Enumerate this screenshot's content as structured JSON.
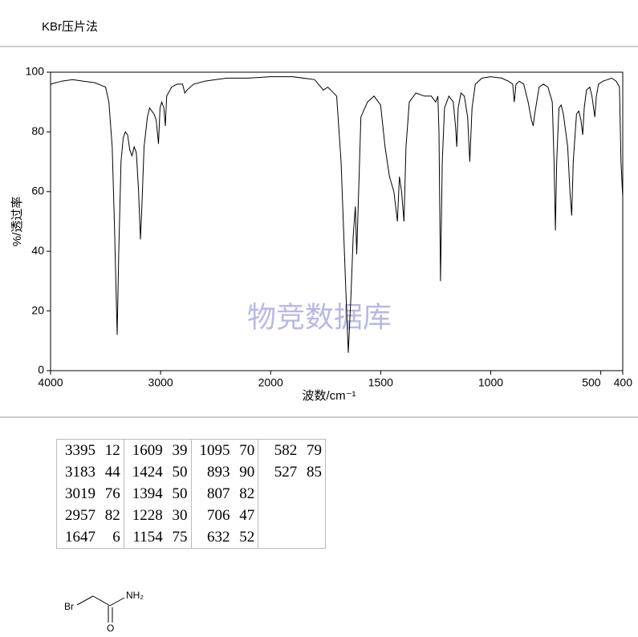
{
  "header": {
    "title": "KBr压片法"
  },
  "chart_data": {
    "type": "line",
    "xlabel": "波数/cm⁻¹",
    "ylabel": "%/透过率",
    "watermark": "物竞数据库",
    "xlim": [
      4000,
      400
    ],
    "x_scale_break": 2000,
    "xticks": [
      4000,
      3000,
      2000,
      1500,
      1000,
      500,
      400
    ],
    "ylim": [
      0,
      100
    ],
    "yticks": [
      0,
      20,
      40,
      60,
      80,
      100
    ],
    "x": [
      4000,
      3900,
      3800,
      3700,
      3600,
      3500,
      3470,
      3440,
      3420,
      3395,
      3380,
      3360,
      3340,
      3320,
      3300,
      3280,
      3260,
      3240,
      3220,
      3200,
      3183,
      3170,
      3150,
      3120,
      3100,
      3060,
      3040,
      3019,
      3005,
      2990,
      2970,
      2957,
      2945,
      2900,
      2850,
      2800,
      2780,
      2760,
      2700,
      2600,
      2500,
      2400,
      2200,
      2000,
      1900,
      1800,
      1760,
      1740,
      1700,
      1680,
      1660,
      1647,
      1635,
      1625,
      1615,
      1609,
      1600,
      1590,
      1560,
      1530,
      1500,
      1480,
      1460,
      1440,
      1424,
      1415,
      1405,
      1394,
      1385,
      1370,
      1340,
      1300,
      1270,
      1250,
      1240,
      1235,
      1228,
      1220,
      1210,
      1190,
      1170,
      1160,
      1154,
      1148,
      1135,
      1120,
      1105,
      1095,
      1085,
      1070,
      1040,
      1000,
      950,
      920,
      900,
      893,
      885,
      870,
      850,
      830,
      815,
      807,
      800,
      780,
      760,
      740,
      720,
      712,
      706,
      700,
      690,
      680,
      670,
      650,
      640,
      632,
      625,
      610,
      600,
      590,
      582,
      575,
      565,
      550,
      540,
      527,
      520,
      510,
      490,
      470,
      450,
      430,
      415,
      408,
      400
    ],
    "series": [
      {
        "color": "#000000",
        "values": [
          96,
          97,
          97.5,
          97,
          96.5,
          95,
          90,
          75,
          50,
          12,
          40,
          70,
          78,
          80,
          79,
          74,
          72,
          75,
          73,
          60,
          44,
          55,
          75,
          85,
          88,
          86,
          84,
          76,
          88,
          90,
          88,
          82,
          92,
          95,
          96,
          96,
          93,
          94,
          96,
          97,
          97.5,
          98,
          98,
          98.5,
          98.5,
          97.5,
          94,
          95,
          92,
          70,
          30,
          6,
          25,
          45,
          55,
          39,
          60,
          85,
          90,
          92,
          89,
          75,
          65,
          60,
          50,
          65,
          60,
          50,
          75,
          90,
          93,
          92,
          92,
          90,
          92,
          80,
          30,
          70,
          88,
          92,
          90,
          82,
          75,
          88,
          93,
          92,
          85,
          70,
          88,
          96,
          98,
          98.5,
          98,
          97,
          96,
          90,
          96,
          97,
          96,
          90,
          84,
          82,
          86,
          95,
          96,
          95,
          90,
          70,
          47,
          70,
          88,
          89,
          86,
          75,
          60,
          52,
          70,
          86,
          87,
          84,
          79,
          88,
          94,
          95,
          92,
          85,
          92,
          96,
          97,
          97.5,
          98,
          97,
          95,
          70,
          58
        ]
      }
    ]
  },
  "peak_table": {
    "columns": [
      [
        [
          3395,
          12
        ],
        [
          3183,
          44
        ],
        [
          3019,
          76
        ],
        [
          2957,
          82
        ],
        [
          1647,
          6
        ]
      ],
      [
        [
          1609,
          39
        ],
        [
          1424,
          50
        ],
        [
          1394,
          50
        ],
        [
          1228,
          30
        ],
        [
          1154,
          75
        ]
      ],
      [
        [
          1095,
          70
        ],
        [
          893,
          90
        ],
        [
          807,
          82
        ],
        [
          706,
          47
        ],
        [
          632,
          52
        ]
      ],
      [
        [
          582,
          79
        ],
        [
          527,
          85
        ]
      ]
    ]
  },
  "structure": {
    "atoms": [
      "Br",
      "NH₂",
      "O"
    ]
  }
}
